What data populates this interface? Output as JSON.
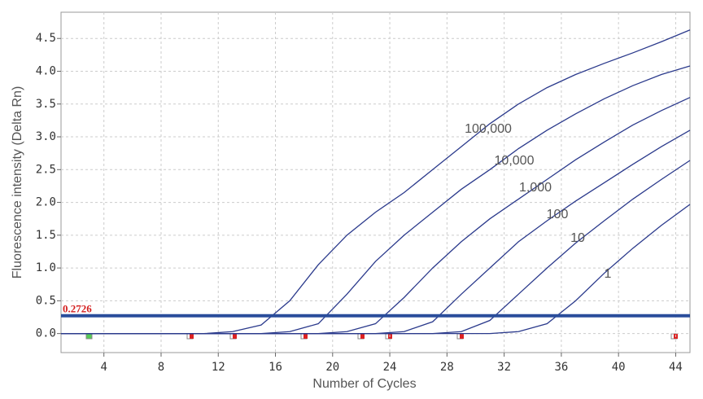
{
  "chart_data": {
    "type": "line",
    "xlabel": "Number of Cycles",
    "ylabel": "Fluorescence intensity (Delta Rn)",
    "x": [
      1,
      3,
      5,
      7,
      9,
      11,
      13,
      15,
      17,
      19,
      21,
      23,
      25,
      27,
      29,
      31,
      33,
      35,
      37,
      39,
      41,
      43,
      45
    ],
    "series": [
      {
        "name": "100,000",
        "color": "#2b3a8c",
        "values": [
          0,
          0,
          0,
          0,
          0,
          0,
          0.03,
          0.13,
          0.5,
          1.05,
          1.5,
          1.85,
          2.15,
          2.5,
          2.85,
          3.2,
          3.5,
          3.75,
          3.95,
          4.12,
          4.28,
          4.45,
          4.63
        ]
      },
      {
        "name": "10,000",
        "color": "#2b3a8c",
        "values": [
          0,
          0,
          0,
          0,
          0,
          0,
          0,
          0,
          0.03,
          0.15,
          0.6,
          1.1,
          1.5,
          1.85,
          2.2,
          2.5,
          2.82,
          3.1,
          3.35,
          3.58,
          3.78,
          3.95,
          4.08
        ]
      },
      {
        "name": "1,000",
        "color": "#2b3a8c",
        "values": [
          0,
          0,
          0,
          0,
          0,
          0,
          0,
          0,
          0,
          0,
          0.03,
          0.15,
          0.55,
          1.0,
          1.4,
          1.75,
          2.05,
          2.35,
          2.65,
          2.92,
          3.18,
          3.4,
          3.6
        ]
      },
      {
        "name": "100",
        "color": "#2b3a8c",
        "values": [
          0,
          0,
          0,
          0,
          0,
          0,
          0,
          0,
          0,
          0,
          0,
          0,
          0.03,
          0.18,
          0.6,
          1.0,
          1.4,
          1.72,
          2.02,
          2.3,
          2.58,
          2.85,
          3.1
        ]
      },
      {
        "name": "10",
        "color": "#2b3a8c",
        "values": [
          0,
          0,
          0,
          0,
          0,
          0,
          0,
          0,
          0,
          0,
          0,
          0,
          0,
          0,
          0.03,
          0.2,
          0.6,
          1.0,
          1.38,
          1.72,
          2.05,
          2.35,
          2.64
        ]
      },
      {
        "name": "1",
        "color": "#2b3a8c",
        "values": [
          0,
          0,
          0,
          0,
          0,
          0,
          0,
          0,
          0,
          0,
          0,
          0,
          0,
          0,
          0,
          0,
          0.03,
          0.15,
          0.5,
          0.92,
          1.3,
          1.65,
          1.97
        ]
      }
    ],
    "threshold": 0.2726,
    "threshold_color": "#2a4d9b",
    "xlim": [
      1,
      45
    ],
    "ylim": [
      -0.29,
      4.9
    ],
    "xticks": [
      4,
      8,
      12,
      16,
      20,
      24,
      28,
      32,
      36,
      40,
      44
    ],
    "yticks": [
      {
        "value": 0,
        "label": "0.0"
      },
      0.5,
      {
        "value": 1,
        "label": "1.0"
      },
      1.5,
      {
        "value": 2,
        "label": "2.0"
      },
      2.5,
      {
        "value": 3,
        "label": "3.0"
      },
      3.5,
      {
        "value": 4,
        "label": "4.0"
      },
      4.5
    ],
    "grid": true
  }
}
